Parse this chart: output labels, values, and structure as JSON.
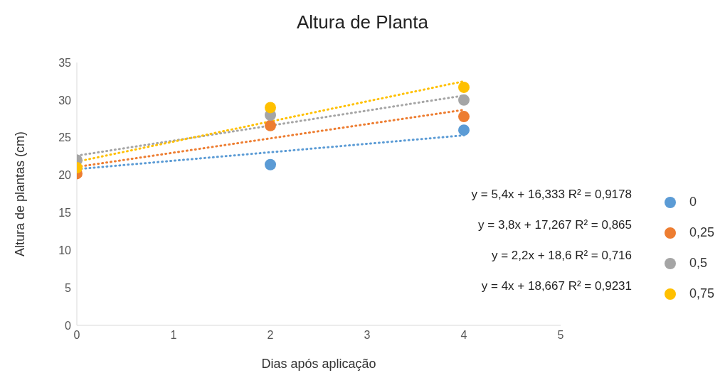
{
  "chart_data": {
    "type": "scatter",
    "title": "Altura de Planta",
    "xlabel": "Dias após aplicação",
    "ylabel": "Altura de plantas (cm)",
    "xlim": [
      0,
      5
    ],
    "xticks": [
      0,
      1,
      2,
      3,
      4,
      5
    ],
    "ylim": [
      0,
      35
    ],
    "yticks": [
      0,
      5,
      10,
      15,
      20,
      25,
      30,
      35
    ],
    "grid": false,
    "legend": "right",
    "marker": "circle",
    "series": [
      {
        "name": "0",
        "color": "#5b9bd5",
        "x": [
          2,
          4
        ],
        "values": [
          21.4,
          26
        ]
      },
      {
        "name": "0,25",
        "color": "#ed7d31",
        "x": [
          0,
          2,
          4
        ],
        "values": [
          20.2,
          26.6,
          27.8
        ]
      },
      {
        "name": "0,5",
        "color": "#a5a5a5",
        "x": [
          0,
          2,
          4
        ],
        "values": [
          22,
          28,
          30
        ]
      },
      {
        "name": "0,75",
        "color": "#ffc000",
        "x": [
          0,
          2,
          4
        ],
        "values": [
          21,
          29,
          31.7
        ]
      },
      {
        "type": "line",
        "line_style": "dotted",
        "marker": "none",
        "color": "#5b9bd5",
        "x": [
          0,
          4
        ],
        "values": [
          20.8,
          25.3
        ]
      },
      {
        "type": "line",
        "line_style": "dotted",
        "marker": "none",
        "color": "#ed7d31",
        "x": [
          0,
          4
        ],
        "values": [
          21.1,
          28.7
        ]
      },
      {
        "type": "line",
        "line_style": "dotted",
        "marker": "none",
        "color": "#a5a5a5",
        "x": [
          0,
          4
        ],
        "values": [
          22.6,
          30.6
        ]
      },
      {
        "type": "line",
        "line_style": "dotted",
        "marker": "none",
        "color": "#ffc000",
        "x": [
          0,
          4
        ],
        "values": [
          21.8,
          32.5
        ]
      }
    ],
    "annotations": [
      "y = 5,4x + 16,333 R² = 0,9178",
      "y = 3,8x + 17,267 R² = 0,865",
      "y = 2,2x + 18,6 R² = 0,716",
      "y = 4x + 18,667 R² = 0,9231"
    ]
  }
}
